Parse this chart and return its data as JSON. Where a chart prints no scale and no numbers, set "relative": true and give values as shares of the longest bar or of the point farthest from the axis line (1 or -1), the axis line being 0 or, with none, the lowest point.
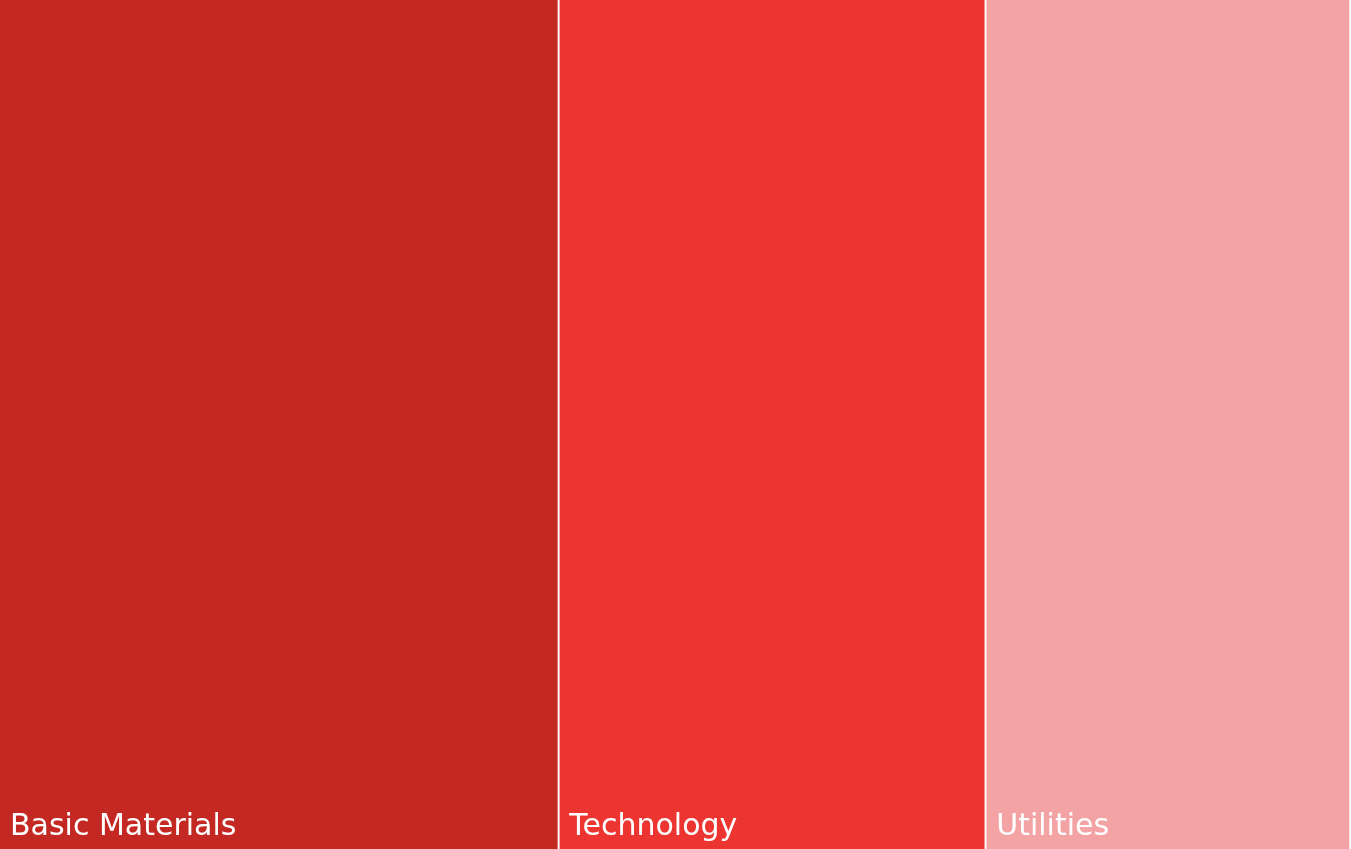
{
  "chart_data": {
    "type": "bar",
    "orientation": "horizontal",
    "stacked": true,
    "relative": true,
    "legend": false,
    "categories": [
      null
    ],
    "series": [
      {
        "name": "Basic Materials",
        "color": "#c32822",
        "values": [
          0.414
        ]
      },
      {
        "name": "Technology",
        "color": "#ec3430",
        "values": [
          0.316
        ]
      },
      {
        "name": "Utilities",
        "color": "#f4a3a4",
        "values": [
          0.27
        ]
      }
    ]
  }
}
